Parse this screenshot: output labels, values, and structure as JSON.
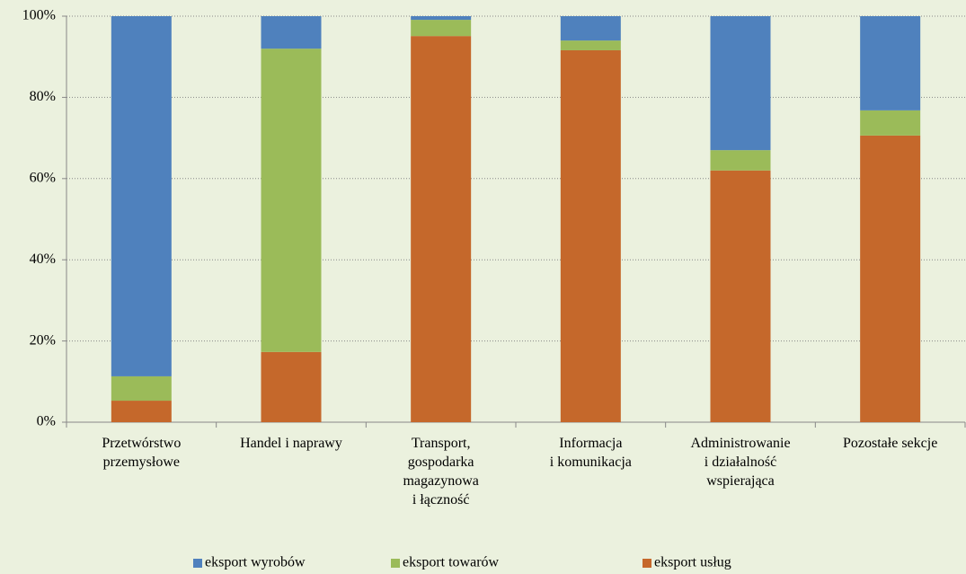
{
  "chart_data": {
    "type": "stacked_bar",
    "categories": [
      "Przetwórstwo\nprzemysłowe",
      "Handel i naprawy",
      "Transport,\ngospodarka\nmagazynowa\ni łączność",
      "Informacja\ni komunikacja",
      "Administrowanie\ni działalność\nwspierająca",
      "Pozostałe sekcje"
    ],
    "series": [
      {
        "name": "eksport wyrobów",
        "color": "#4f81bd",
        "values": [
          88.7,
          8.0,
          0.9,
          6.0,
          33.0,
          23.2
        ]
      },
      {
        "name": "eksport towarów",
        "color": "#9bbb59",
        "values": [
          6.0,
          74.7,
          4.0,
          2.4,
          5.0,
          6.2
        ]
      },
      {
        "name": "eksport usług",
        "color": "#c5682b",
        "values": [
          5.3,
          17.3,
          95.1,
          91.6,
          62.0,
          70.6
        ]
      }
    ],
    "ylim": [
      0,
      100
    ],
    "yticks": [
      {
        "value": 0,
        "label": "0%"
      },
      {
        "value": 20,
        "label": "20%"
      },
      {
        "value": 40,
        "label": "40%"
      },
      {
        "value": 60,
        "label": "60%"
      },
      {
        "value": 80,
        "label": "80%"
      },
      {
        "value": 100,
        "label": "100%"
      }
    ],
    "grid": true,
    "legend": "bottom"
  }
}
